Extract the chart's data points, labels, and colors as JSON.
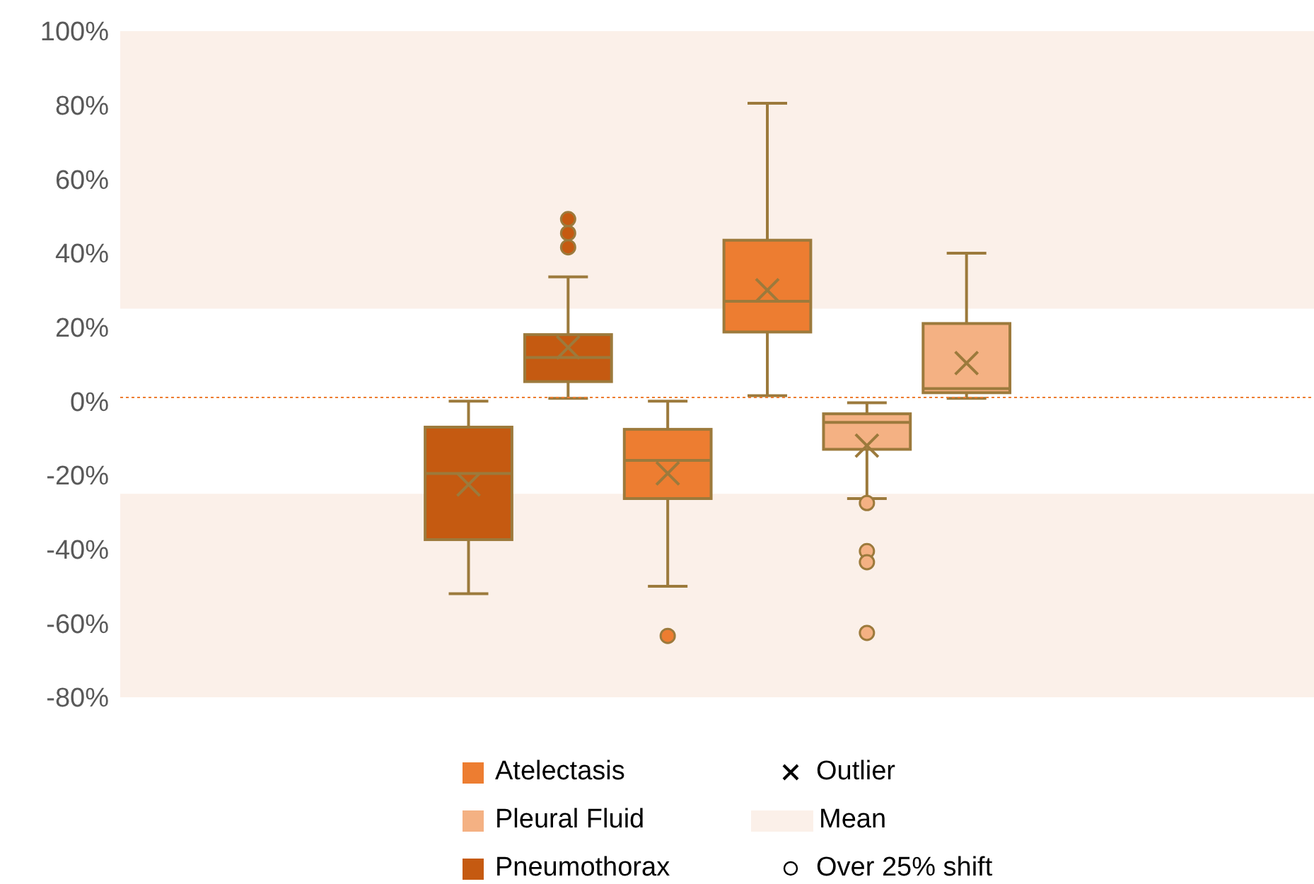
{
  "chart_data": {
    "type": "box",
    "categories": [
      null,
      null,
      null,
      null,
      null,
      null,
      null,
      null,
      null,
      null,
      null,
      null
    ],
    "series": [
      {
        "name": "Atelectasis",
        "color": "#ed7d31",
        "boxes": [
          null,
          null,
          null,
          null,
          null,
          {
            "low": -50,
            "q1": -26.3,
            "median": -16,
            "q3": -7.6,
            "high": 0,
            "mean": -19.5,
            "outliers": [
              -63.4
            ]
          },
          {
            "low": 1.5,
            "q1": 18.7,
            "median": 27,
            "q3": 43.5,
            "high": 80.5,
            "mean": 30
          },
          null,
          null,
          null,
          null,
          null
        ]
      },
      {
        "name": "Pleural Fluid",
        "color": "#f4b183",
        "boxes": [
          null,
          null,
          null,
          null,
          null,
          null,
          null,
          {
            "low": -26.3,
            "q1": -13,
            "median": -5.7,
            "q3": -3.4,
            "high": -0.4,
            "mean": -12,
            "outliers": [
              -27.5,
              -40.5,
              -43.5,
              -62.6
            ]
          },
          {
            "low": 0.8,
            "q1": 2.3,
            "median": 3.4,
            "q3": 21,
            "high": 40,
            "mean": 10.3
          },
          null,
          null,
          null
        ]
      },
      {
        "name": "Pneumothorax",
        "color": "#c55a11",
        "boxes": [
          null,
          null,
          null,
          {
            "low": -52,
            "q1": -37.4,
            "median": -19.5,
            "q3": -7,
            "high": 0,
            "mean": -22.5
          },
          {
            "low": 0.8,
            "q1": 5.3,
            "median": 11.8,
            "q3": 18,
            "high": 33.6,
            "mean": 14.5,
            "outliers": [
              49.2,
              45.4,
              41.6
            ]
          },
          null,
          null,
          null,
          null,
          null,
          null,
          null
        ]
      }
    ],
    "ylim": [
      -80,
      100
    ],
    "yticks": [
      {
        "value": -80,
        "label": "-80%"
      },
      {
        "value": -60,
        "label": "-60%"
      },
      {
        "value": -40,
        "label": "-40%"
      },
      {
        "value": -20,
        "label": "-20%"
      },
      {
        "value": 0,
        "label": "0%"
      },
      {
        "value": 20,
        "label": "20%"
      },
      {
        "value": 40,
        "label": "40%"
      },
      {
        "value": 60,
        "label": "60%"
      },
      {
        "value": 80,
        "label": "80%"
      },
      {
        "value": 100,
        "label": "100%"
      }
    ],
    "tick_labels": "y",
    "grid": false,
    "legend": "bottom",
    "bands": [
      {
        "axis": "y",
        "from": 25,
        "to": 100,
        "color": "#fbf0e9",
        "label": "Mean"
      },
      {
        "axis": "y",
        "from": -80,
        "to": -25,
        "color": "#fbf0e9"
      }
    ],
    "ref_lines": [
      {
        "axis": "y",
        "value": 1,
        "color": "#ed7d31",
        "line_style": "dotted"
      }
    ],
    "annotations": [
      "Outlier",
      "Over 25% shift"
    ]
  }
}
